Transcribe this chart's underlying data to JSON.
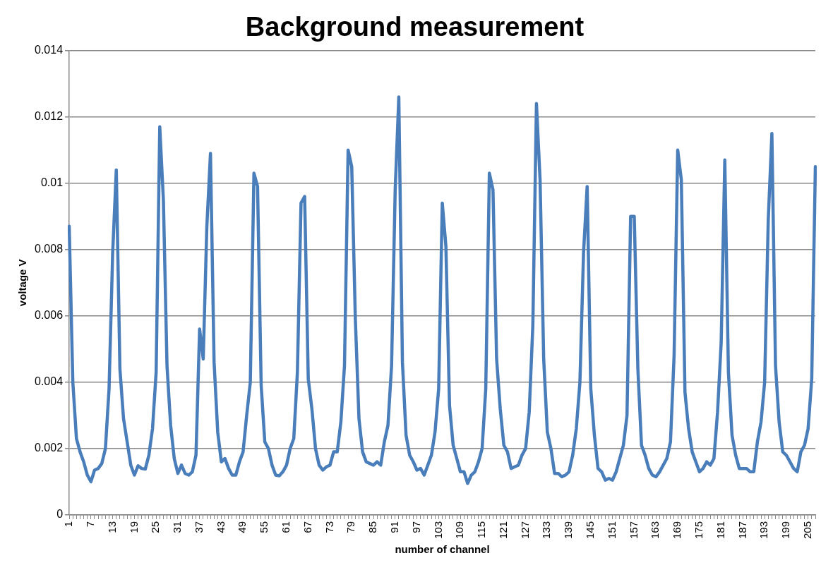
{
  "chart_data": {
    "type": "line",
    "title": "Background measurement",
    "xlabel": "number of channel",
    "ylabel": "voltage V",
    "categories": [
      "1",
      null,
      null,
      null,
      null,
      null,
      "7",
      null,
      null,
      null,
      null,
      null,
      "13",
      null,
      null,
      null,
      null,
      null,
      "19",
      null,
      null,
      null,
      null,
      null,
      "25",
      null,
      null,
      null,
      null,
      null,
      "31",
      null,
      null,
      null,
      null,
      null,
      "37",
      null,
      null,
      null,
      null,
      null,
      "43",
      null,
      null,
      null,
      null,
      null,
      "49",
      null,
      null,
      null,
      null,
      null,
      "55",
      null,
      null,
      null,
      null,
      null,
      "61",
      null,
      null,
      null,
      null,
      null,
      "67",
      null,
      null,
      null,
      null,
      null,
      "73",
      null,
      null,
      null,
      null,
      null,
      "79",
      null,
      null,
      null,
      null,
      null,
      "85",
      null,
      null,
      null,
      null,
      null,
      "91",
      null,
      null,
      null,
      null,
      null,
      "97",
      null,
      null,
      null,
      null,
      null,
      "103",
      null,
      null,
      null,
      null,
      null,
      "109",
      null,
      null,
      null,
      null,
      null,
      "115",
      null,
      null,
      null,
      null,
      null,
      "121",
      null,
      null,
      null,
      null,
      null,
      "127",
      null,
      null,
      null,
      null,
      null,
      "133",
      null,
      null,
      null,
      null,
      null,
      "139",
      null,
      null,
      null,
      null,
      null,
      "145",
      null,
      null,
      null,
      null,
      null,
      "151",
      null,
      null,
      null,
      null,
      null,
      "157",
      null,
      null,
      null,
      null,
      null,
      "163",
      null,
      null,
      null,
      null,
      null,
      "169",
      null,
      null,
      null,
      null,
      null,
      "175",
      null,
      null,
      null,
      null,
      null,
      "181",
      null,
      null,
      null,
      null,
      null,
      "187",
      null,
      null,
      null,
      null,
      null,
      "193",
      null,
      null,
      null,
      null,
      null,
      "199",
      null,
      null,
      null,
      null,
      null,
      "205",
      null,
      null
    ],
    "series": [
      {
        "color": "#4a7ebb",
        "values": [
          0.0087,
          0.004,
          0.0023,
          0.0019,
          0.0016,
          0.0012,
          0.001,
          0.00135,
          0.0014,
          0.00155,
          0.002,
          0.0038,
          0.0079,
          0.0104,
          0.0044,
          0.0029,
          0.0022,
          0.0015,
          0.0012,
          0.00148,
          0.0014,
          0.00138,
          0.0018,
          0.0026,
          0.0043,
          0.0117,
          0.0095,
          0.0045,
          0.0027,
          0.0017,
          0.00125,
          0.0015,
          0.00125,
          0.0012,
          0.0013,
          0.0018,
          0.0056,
          0.0047,
          0.0087,
          0.0109,
          0.0046,
          0.0025,
          0.0016,
          0.0017,
          0.0014,
          0.0012,
          0.0012,
          0.0016,
          0.0019,
          0.003,
          0.004,
          0.0103,
          0.0099,
          0.0039,
          0.0022,
          0.002,
          0.0015,
          0.0012,
          0.00118,
          0.0013,
          0.0015,
          0.002,
          0.0023,
          0.0043,
          0.0094,
          0.0096,
          0.0041,
          0.0032,
          0.002,
          0.0015,
          0.00135,
          0.00145,
          0.0015,
          0.0019,
          0.0019,
          0.0028,
          0.0045,
          0.011,
          0.0105,
          0.0059,
          0.0029,
          0.0019,
          0.0016,
          0.00155,
          0.0015,
          0.0016,
          0.0015,
          0.0022,
          0.0027,
          0.0045,
          0.0098,
          0.0126,
          0.0046,
          0.0024,
          0.0018,
          0.0016,
          0.00135,
          0.0014,
          0.0012,
          0.0015,
          0.0018,
          0.0025,
          0.0038,
          0.0094,
          0.0081,
          0.0033,
          0.0021,
          0.0017,
          0.0013,
          0.0013,
          0.00095,
          0.0012,
          0.0013,
          0.0016,
          0.002,
          0.0038,
          0.0103,
          0.0098,
          0.0047,
          0.0032,
          0.0021,
          0.0019,
          0.0014,
          0.00145,
          0.0015,
          0.0018,
          0.002,
          0.0031,
          0.0057,
          0.0124,
          0.0101,
          0.0047,
          0.0025,
          0.002,
          0.00125,
          0.00125,
          0.00115,
          0.0012,
          0.0013,
          0.0018,
          0.0026,
          0.004,
          0.0079,
          0.0099,
          0.0038,
          0.0024,
          0.0014,
          0.0013,
          0.00105,
          0.0011,
          0.00105,
          0.0013,
          0.0017,
          0.0021,
          0.003,
          0.009,
          0.009,
          0.0044,
          0.0021,
          0.0018,
          0.0014,
          0.0012,
          0.00115,
          0.0013,
          0.0015,
          0.0017,
          0.0022,
          0.0048,
          0.011,
          0.0101,
          0.0037,
          0.0026,
          0.0019,
          0.0016,
          0.0013,
          0.0014,
          0.0016,
          0.0015,
          0.0017,
          0.0031,
          0.0052,
          0.0107,
          0.0043,
          0.0024,
          0.0018,
          0.0014,
          0.0014,
          0.0014,
          0.0013,
          0.0013,
          0.0022,
          0.0028,
          0.004,
          0.0089,
          0.0115,
          0.0045,
          0.0028,
          0.0019,
          0.0018,
          0.0016,
          0.0014,
          0.0013,
          0.0019,
          0.0021,
          0.0026,
          0.0041,
          0.0105
        ]
      }
    ],
    "ylim": [
      0,
      0.014
    ],
    "yticks": [
      0,
      0.002,
      0.004,
      0.006,
      0.008,
      0.01,
      0.012,
      0.014
    ],
    "grid": "y",
    "legend": false,
    "marker": "none"
  }
}
